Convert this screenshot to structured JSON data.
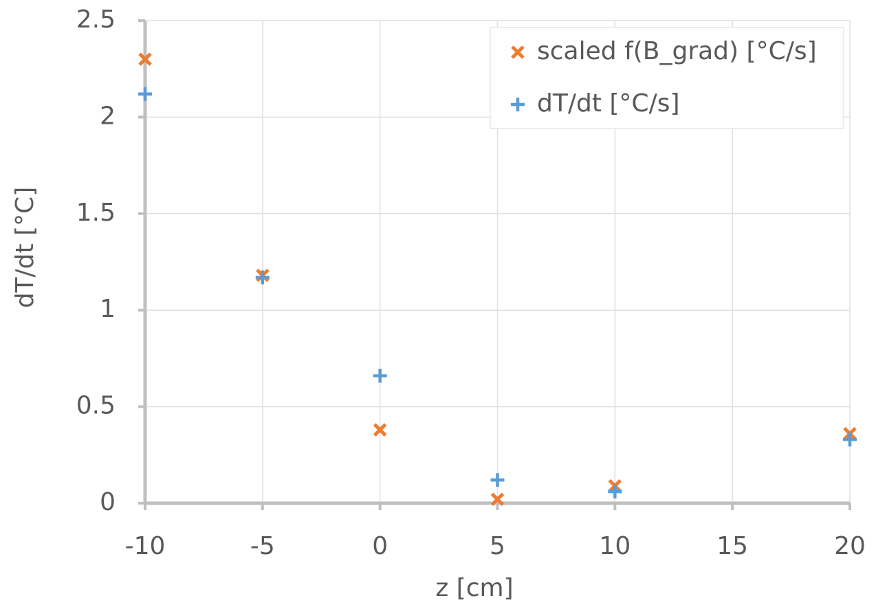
{
  "chart_data": {
    "type": "scatter",
    "x_label": "z [cm]",
    "y_label": "dT/dt [°C]",
    "x": [
      -10,
      -5,
      0,
      5,
      10,
      20
    ],
    "series": [
      {
        "name": "scaled f(B_grad) [°C/s]",
        "color": "#ed7d31",
        "marker": "x",
        "values": [
          2.3,
          1.18,
          0.38,
          0.02,
          0.09,
          0.36
        ]
      },
      {
        "name": "dT/dt [°C/s]",
        "color": "#5b9bd5",
        "marker": "plus",
        "values": [
          2.12,
          1.17,
          0.66,
          0.12,
          0.06,
          0.33
        ]
      }
    ],
    "xlim": [
      -10,
      20
    ],
    "xticks": [
      -10,
      -5,
      0,
      5,
      10,
      15,
      20
    ],
    "ylim": [
      0,
      2.5
    ],
    "yticks": [
      0,
      0.5,
      1,
      1.5,
      2,
      2.5
    ],
    "grid": true,
    "legend": "upper right"
  }
}
